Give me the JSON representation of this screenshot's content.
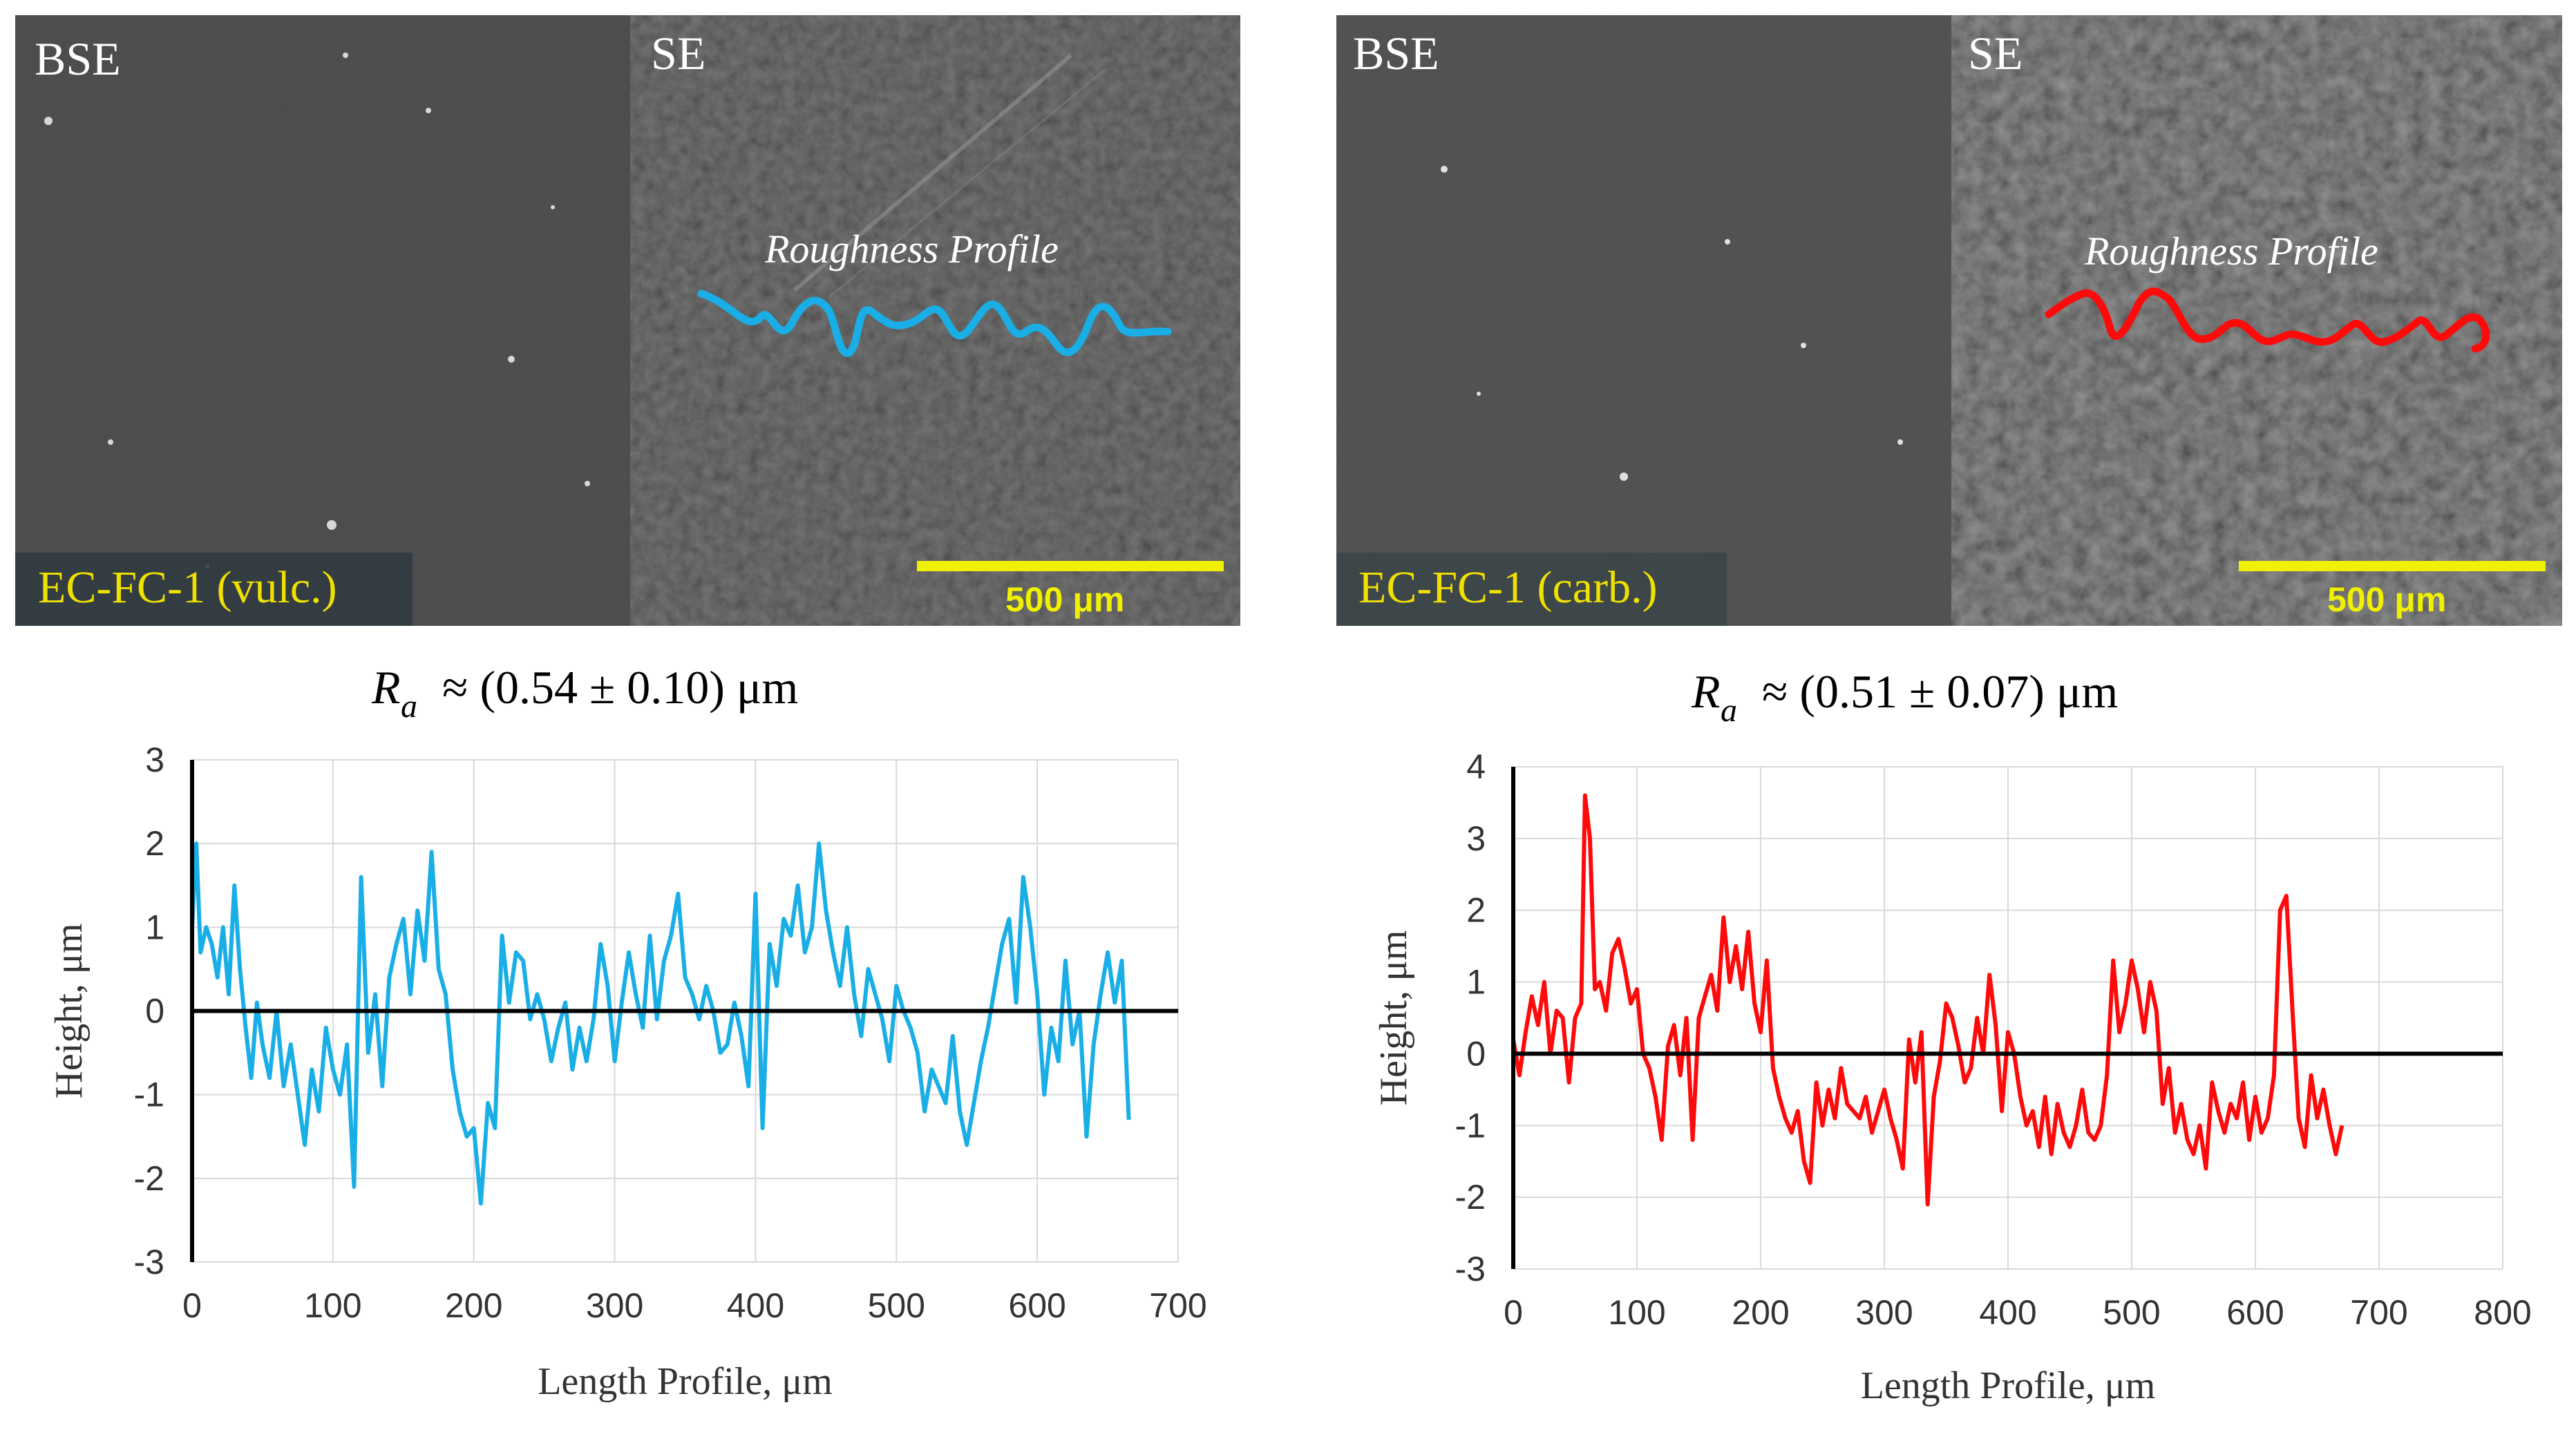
{
  "panels": [
    {
      "id": "vulc",
      "color": "#1aaee6",
      "sem": {
        "bse_label": "BSE",
        "se_label": "SE",
        "profile_label": "Roughness Profile",
        "sample_label": "EC-FC-1 (vulc.)",
        "scale_label": "500 μm",
        "scale_color": "#f0f000",
        "sample_label_color": "#f0e000"
      },
      "ra_prefix": "R",
      "ra_sub": "a",
      "ra_text": "≈ (0.54 ± 0.10) μm"
    },
    {
      "id": "carb",
      "color": "#ff0a0a",
      "sem": {
        "bse_label": "BSE",
        "se_label": "SE",
        "profile_label": "Roughness Profile",
        "sample_label": "EC-FC-1 (carb.)",
        "scale_label": "500 μm",
        "scale_color": "#f0f000",
        "sample_label_color": "#f0e000"
      },
      "ra_prefix": "R",
      "ra_sub": "a",
      "ra_text": "≈ (0.51 ± 0.07) μm"
    }
  ],
  "chart_data": [
    {
      "type": "line",
      "title": "",
      "xlabel": "Length Profile, μm",
      "ylabel": "Height, μm",
      "xlim": [
        0,
        700
      ],
      "ylim": [
        -3,
        3
      ],
      "xticks": [
        0,
        100,
        200,
        300,
        400,
        500,
        600,
        700
      ],
      "yticks": [
        -3,
        -2,
        -1,
        0,
        1,
        2,
        3
      ],
      "grid": true,
      "color": "#1aaee6",
      "series": [
        {
          "name": "EC-FC-1 (vulc.)",
          "x": [
            0,
            3,
            6,
            10,
            14,
            18,
            22,
            26,
            30,
            34,
            38,
            42,
            46,
            50,
            55,
            60,
            65,
            70,
            75,
            80,
            85,
            90,
            95,
            100,
            105,
            110,
            115,
            120,
            125,
            130,
            135,
            140,
            145,
            150,
            155,
            160,
            165,
            170,
            175,
            180,
            185,
            190,
            195,
            200,
            205,
            210,
            215,
            220,
            225,
            230,
            235,
            240,
            245,
            250,
            255,
            260,
            265,
            270,
            275,
            280,
            285,
            290,
            295,
            300,
            305,
            310,
            315,
            320,
            325,
            330,
            335,
            340,
            345,
            350,
            355,
            360,
            365,
            370,
            375,
            380,
            385,
            390,
            395,
            400,
            405,
            410,
            415,
            420,
            425,
            430,
            435,
            440,
            445,
            450,
            455,
            460,
            465,
            470,
            475,
            480,
            485,
            490,
            495,
            500,
            505,
            510,
            515,
            520,
            525,
            530,
            535,
            540,
            545,
            550,
            555,
            560,
            565,
            570,
            575,
            580,
            585,
            590,
            595,
            600,
            605,
            610,
            615,
            620,
            625,
            630,
            635,
            640,
            645,
            650,
            655,
            660,
            665
          ],
          "y": [
            1.0,
            2.0,
            0.7,
            1.0,
            0.8,
            0.4,
            1.0,
            0.2,
            1.5,
            0.5,
            -0.2,
            -0.8,
            0.1,
            -0.4,
            -0.8,
            0.0,
            -0.9,
            -0.4,
            -1.0,
            -1.6,
            -0.7,
            -1.2,
            -0.2,
            -0.7,
            -1.0,
            -0.4,
            -2.1,
            1.6,
            -0.5,
            0.2,
            -0.9,
            0.4,
            0.8,
            1.1,
            0.2,
            1.2,
            0.6,
            1.9,
            0.5,
            0.2,
            -0.7,
            -1.2,
            -1.5,
            -1.4,
            -2.3,
            -1.1,
            -1.4,
            0.9,
            0.1,
            0.7,
            0.6,
            -0.1,
            0.2,
            -0.1,
            -0.6,
            -0.2,
            0.1,
            -0.7,
            -0.2,
            -0.6,
            -0.1,
            0.8,
            0.3,
            -0.6,
            0.1,
            0.7,
            0.2,
            -0.2,
            0.9,
            -0.1,
            0.6,
            0.9,
            1.4,
            0.4,
            0.2,
            -0.1,
            0.3,
            0.0,
            -0.5,
            -0.4,
            0.1,
            -0.3,
            -0.9,
            1.4,
            -1.4,
            0.8,
            0.3,
            1.1,
            0.9,
            1.5,
            0.7,
            1.0,
            2.0,
            1.2,
            0.7,
            0.3,
            1.0,
            0.2,
            -0.3,
            0.5,
            0.2,
            -0.1,
            -0.6,
            0.3,
            0.0,
            -0.2,
            -0.5,
            -1.2,
            -0.7,
            -0.9,
            -1.1,
            -0.3,
            -1.2,
            -1.6,
            -1.1,
            -0.6,
            -0.2,
            0.3,
            0.8,
            1.1,
            0.1,
            1.6,
            1.0,
            0.2,
            -1.0,
            -0.2,
            -0.6,
            0.6,
            -0.4,
            0.0,
            -1.5,
            -0.4,
            0.2,
            0.7,
            0.1,
            0.6,
            -1.3
          ]
        }
      ]
    },
    {
      "type": "line",
      "title": "",
      "xlabel": "Length Profile, μm",
      "ylabel": "Height, μm",
      "xlim": [
        0,
        800
      ],
      "ylim": [
        -3,
        4
      ],
      "xticks": [
        0,
        100,
        200,
        300,
        400,
        500,
        600,
        700,
        800
      ],
      "yticks": [
        -3,
        -2,
        -1,
        0,
        1,
        2,
        3,
        4
      ],
      "grid": true,
      "color": "#ff0a0a",
      "series": [
        {
          "name": "EC-FC-1 (carb.)",
          "x": [
            0,
            5,
            10,
            15,
            20,
            25,
            30,
            35,
            40,
            45,
            50,
            55,
            58,
            62,
            66,
            70,
            75,
            80,
            85,
            90,
            95,
            100,
            105,
            110,
            115,
            120,
            125,
            130,
            135,
            140,
            145,
            150,
            155,
            160,
            165,
            170,
            175,
            180,
            185,
            190,
            195,
            200,
            205,
            210,
            215,
            220,
            225,
            230,
            235,
            240,
            245,
            250,
            255,
            260,
            265,
            270,
            275,
            280,
            285,
            290,
            295,
            300,
            305,
            310,
            315,
            320,
            325,
            330,
            335,
            340,
            345,
            350,
            355,
            360,
            365,
            370,
            375,
            380,
            385,
            390,
            395,
            400,
            405,
            410,
            415,
            420,
            425,
            430,
            435,
            440,
            445,
            450,
            455,
            460,
            465,
            470,
            475,
            480,
            485,
            490,
            495,
            500,
            505,
            510,
            515,
            520,
            525,
            530,
            535,
            540,
            545,
            550,
            555,
            560,
            565,
            570,
            575,
            580,
            585,
            590,
            595,
            600,
            605,
            610,
            615,
            620,
            625,
            630,
            635,
            640,
            645,
            650,
            655,
            660,
            665,
            670
          ],
          "y": [
            0.2,
            -0.3,
            0.3,
            0.8,
            0.4,
            1.0,
            0.0,
            0.6,
            0.5,
            -0.4,
            0.5,
            0.7,
            3.6,
            3.0,
            0.9,
            1.0,
            0.6,
            1.4,
            1.6,
            1.2,
            0.7,
            0.9,
            0.0,
            -0.2,
            -0.6,
            -1.2,
            0.1,
            0.4,
            -0.3,
            0.5,
            -1.2,
            0.5,
            0.8,
            1.1,
            0.6,
            1.9,
            1.0,
            1.5,
            0.9,
            1.7,
            0.7,
            0.3,
            1.3,
            -0.2,
            -0.6,
            -0.9,
            -1.1,
            -0.8,
            -1.5,
            -1.8,
            -0.4,
            -1.0,
            -0.5,
            -0.9,
            -0.2,
            -0.7,
            -0.8,
            -0.9,
            -0.6,
            -1.1,
            -0.8,
            -0.5,
            -0.9,
            -1.2,
            -1.6,
            0.2,
            -0.4,
            0.3,
            -2.1,
            -0.6,
            -0.1,
            0.7,
            0.5,
            0.1,
            -0.4,
            -0.2,
            0.5,
            0.0,
            1.1,
            0.4,
            -0.8,
            0.3,
            0.0,
            -0.6,
            -1.0,
            -0.8,
            -1.3,
            -0.6,
            -1.4,
            -0.7,
            -1.1,
            -1.3,
            -1.0,
            -0.5,
            -1.1,
            -1.2,
            -1.0,
            -0.3,
            1.3,
            0.3,
            0.7,
            1.3,
            0.9,
            0.3,
            1.0,
            0.6,
            -0.7,
            -0.2,
            -1.1,
            -0.7,
            -1.2,
            -1.4,
            -1.0,
            -1.6,
            -0.4,
            -0.8,
            -1.1,
            -0.7,
            -0.9,
            -0.4,
            -1.2,
            -0.6,
            -1.1,
            -0.9,
            -0.3,
            2.0,
            2.2,
            0.6,
            -0.9,
            -1.3,
            -0.3,
            -0.9,
            -0.5,
            -1.0,
            -1.4,
            -1.0
          ]
        }
      ]
    }
  ]
}
